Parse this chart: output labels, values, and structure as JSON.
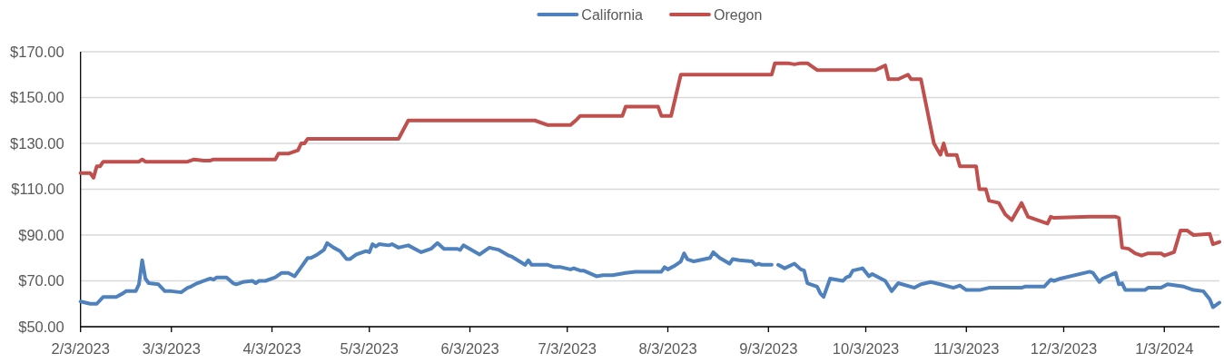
{
  "chart_data": {
    "type": "line",
    "legend": "top",
    "grid": "y",
    "line_style": "solid",
    "xlim": [
      "2023-02-03",
      "2024-01-20"
    ],
    "xticks": [
      {
        "value": "2023-02-03",
        "label": "2/3/2023"
      },
      {
        "value": "2023-03-03",
        "label": "3/3/2023"
      },
      {
        "value": "2023-04-03",
        "label": "4/3/2023"
      },
      {
        "value": "2023-05-03",
        "label": "5/3/2023"
      },
      {
        "value": "2023-06-03",
        "label": "6/3/2023"
      },
      {
        "value": "2023-07-03",
        "label": "7/3/2023"
      },
      {
        "value": "2023-08-03",
        "label": "8/3/2023"
      },
      {
        "value": "2023-09-03",
        "label": "9/3/2023"
      },
      {
        "value": "2023-10-03",
        "label": "10/3/2023"
      },
      {
        "value": "2023-11-03",
        "label": "11/3/2023"
      },
      {
        "value": "2023-12-03",
        "label": "12/3/2023"
      },
      {
        "value": "2024-01-03",
        "label": "1/3/2024"
      }
    ],
    "ylim": [
      50,
      170
    ],
    "yticks": [
      {
        "value": 50,
        "label": "$50.00"
      },
      {
        "value": 70,
        "label": "$70.00"
      },
      {
        "value": 90,
        "label": "$90.00"
      },
      {
        "value": 110,
        "label": "$110.00"
      },
      {
        "value": 130,
        "label": "$130.00"
      },
      {
        "value": 150,
        "label": "$150.00"
      },
      {
        "value": 170,
        "label": "$170.00"
      }
    ],
    "series": [
      {
        "name": "California",
        "color": "#4f81bd",
        "x": [
          "2023-02-03",
          "2023-02-06",
          "2023-02-08",
          "2023-02-10",
          "2023-02-14",
          "2023-02-16",
          "2023-02-17",
          "2023-02-20",
          "2023-02-21",
          "2023-02-22",
          "2023-02-23",
          "2023-02-24",
          "2023-02-27",
          "2023-03-01",
          "2023-03-03",
          "2023-03-06",
          "2023-03-08",
          "2023-03-09",
          "2023-03-11",
          "2023-03-14",
          "2023-03-15",
          "2023-03-16",
          "2023-03-17",
          "2023-03-20",
          "2023-03-22",
          "2023-03-23",
          "2023-03-25",
          "2023-03-28",
          "2023-03-29",
          "2023-03-30",
          "2023-04-01",
          "2023-04-04",
          "2023-04-05",
          "2023-04-06",
          "2023-04-08",
          "2023-04-10",
          "2023-04-12",
          "2023-04-14",
          "2023-04-15",
          "2023-04-17",
          "2023-04-19",
          "2023-04-20",
          "2023-04-22",
          "2023-04-24",
          "2023-04-26",
          "2023-04-27",
          "2023-04-29",
          "2023-05-02",
          "2023-05-03",
          "2023-05-04",
          "2023-05-05",
          "2023-05-06",
          "2023-05-09",
          "2023-05-10",
          "2023-05-12",
          "2023-05-15",
          "2023-05-19",
          "2023-05-22",
          "2023-05-24",
          "2023-05-26",
          "2023-05-30",
          "2023-05-31",
          "2023-06-01",
          "2023-06-06",
          "2023-06-07",
          "2023-06-09",
          "2023-06-12",
          "2023-06-15",
          "2023-06-16",
          "2023-06-20",
          "2023-06-21",
          "2023-06-22",
          "2023-06-27",
          "2023-06-29",
          "2023-07-01",
          "2023-07-04",
          "2023-07-05",
          "2023-07-07",
          "2023-07-08",
          "2023-07-12",
          "2023-07-14",
          "2023-07-17",
          "2023-07-19",
          "2023-07-21",
          "2023-07-24",
          "2023-08-01",
          "2023-08-02",
          "2023-08-03",
          "2023-08-05",
          "2023-08-07",
          "2023-08-08",
          "2023-08-09",
          "2023-08-11",
          "2023-08-16",
          "2023-08-17",
          "2023-08-19",
          "2023-08-22",
          "2023-08-23",
          "2023-08-25",
          "2023-08-29",
          "2023-08-30",
          "2023-08-31",
          "2023-09-01",
          "2023-09-04",
          "2023-09-05",
          "2023-09-06",
          "2023-09-08",
          "2023-09-11",
          "2023-09-13",
          "2023-09-14",
          "2023-09-15",
          "2023-09-18",
          "2023-09-19",
          "2023-09-20",
          "2023-09-22",
          "2023-09-26",
          "2023-09-27",
          "2023-09-28",
          "2023-09-29",
          "2023-10-02",
          "2023-10-04",
          "2023-10-05",
          "2023-10-09",
          "2023-10-11",
          "2023-10-13",
          "2023-10-18",
          "2023-10-20",
          "2023-10-23",
          "2023-10-26",
          "2023-10-30",
          "2023-11-01",
          "2023-11-03",
          "2023-11-07",
          "2023-11-10",
          "2023-11-15",
          "2023-11-17",
          "2023-11-20",
          "2023-11-21",
          "2023-11-27",
          "2023-11-29",
          "2023-11-30",
          "2023-12-02",
          "2023-12-11",
          "2023-12-12",
          "2023-12-14",
          "2023-12-15",
          "2023-12-19",
          "2023-12-20",
          "2023-12-21",
          "2023-12-22",
          "2023-12-28",
          "2023-12-29",
          "2024-01-02",
          "2024-01-04",
          "2024-01-09",
          "2024-01-12",
          "2024-01-15",
          "2024-01-17",
          "2024-01-18",
          "2024-01-20"
        ],
        "values": [
          61,
          60,
          60,
          63,
          63,
          64.5,
          65.5,
          65.5,
          68.5,
          79,
          71,
          69,
          68.5,
          65.5,
          65.5,
          65,
          67,
          67.5,
          69,
          70.5,
          71,
          70.5,
          71.5,
          71.5,
          69,
          68.5,
          69.5,
          70,
          69,
          70,
          70,
          71.5,
          72.5,
          73.5,
          73.5,
          72,
          76,
          80,
          80,
          81.5,
          83.5,
          86.5,
          84.5,
          83,
          79.5,
          79.5,
          81.5,
          83,
          82.5,
          86,
          85,
          86,
          85.5,
          86,
          84.5,
          85.5,
          82.5,
          84,
          86.5,
          84,
          84,
          83.5,
          85.5,
          81.5,
          82.5,
          84.5,
          83.5,
          81,
          80.5,
          77,
          79,
          77,
          77,
          76,
          76,
          75,
          75.5,
          74.5,
          74.5,
          72,
          72.5,
          72.5,
          73,
          73.5,
          74,
          74,
          76,
          75,
          76.5,
          78.5,
          82,
          79.5,
          78.5,
          80,
          82.5,
          80,
          77.5,
          79.5,
          79,
          78.5,
          77,
          77.5,
          77,
          77,
          null,
          77,
          75.5,
          77.5,
          75,
          74.5,
          69,
          67.5,
          64.5,
          63,
          71,
          70,
          71.5,
          72,
          74.5,
          75.5,
          72,
          73,
          70,
          65.5,
          69,
          67,
          68.5,
          69.5,
          68.5,
          67,
          68,
          66,
          66,
          67,
          67,
          67,
          67,
          67.5,
          67.5,
          70.5,
          70,
          71,
          74,
          73.5,
          69.5,
          71,
          73.5,
          68.5,
          69,
          66,
          66,
          67,
          67,
          68.5,
          67.5,
          66,
          65.5,
          62,
          58.5,
          60.5
        ]
      },
      {
        "name": "Oregon",
        "color": "#c0504d",
        "x": [
          "2023-02-03",
          "2023-02-06",
          "2023-02-07",
          "2023-02-08",
          "2023-02-09",
          "2023-02-10",
          "2023-02-21",
          "2023-02-22",
          "2023-02-23",
          "2023-03-08",
          "2023-03-10",
          "2023-03-13",
          "2023-03-15",
          "2023-03-16",
          "2023-04-04",
          "2023-04-05",
          "2023-04-08",
          "2023-04-11",
          "2023-04-12",
          "2023-04-13",
          "2023-04-14",
          "2023-05-12",
          "2023-05-15",
          "2023-06-23",
          "2023-06-27",
          "2023-07-04",
          "2023-07-06",
          "2023-07-07",
          "2023-07-20",
          "2023-07-21",
          "2023-07-31",
          "2023-08-01",
          "2023-08-04",
          "2023-08-07",
          "2023-09-04",
          "2023-09-05",
          "2023-09-09",
          "2023-09-11",
          "2023-09-13",
          "2023-09-15",
          "2023-09-18",
          "2023-10-06",
          "2023-10-09",
          "2023-10-10",
          "2023-10-13",
          "2023-10-16",
          "2023-10-17",
          "2023-10-20",
          "2023-10-24",
          "2023-10-26",
          "2023-10-27",
          "2023-10-28",
          "2023-10-31",
          "2023-11-01",
          "2023-11-06",
          "2023-11-07",
          "2023-11-09",
          "2023-11-10",
          "2023-11-13",
          "2023-11-15",
          "2023-11-17",
          "2023-11-20",
          "2023-11-22",
          "2023-11-24",
          "2023-11-28",
          "2023-11-29",
          "2023-11-30",
          "2023-12-11",
          "2023-12-19",
          "2023-12-20",
          "2023-12-21",
          "2023-12-23",
          "2023-12-25",
          "2023-12-27",
          "2023-12-29",
          "2024-01-02",
          "2024-01-03",
          "2024-01-05",
          "2024-01-06",
          "2024-01-08",
          "2024-01-10",
          "2024-01-12",
          "2024-01-17",
          "2024-01-18",
          "2024-01-20"
        ],
        "values": [
          117,
          117,
          115,
          120,
          120,
          122,
          122,
          123,
          122,
          122,
          123,
          122.5,
          122.5,
          123,
          123,
          125.5,
          125.5,
          127,
          130,
          130,
          132,
          132,
          140,
          140,
          138,
          138,
          140.5,
          142,
          142,
          146,
          146,
          142,
          142,
          160,
          160,
          165,
          165,
          164.5,
          165,
          165,
          162,
          162,
          164,
          158,
          158,
          160,
          158,
          158,
          130,
          125,
          130,
          125,
          125,
          120,
          120,
          110,
          110,
          105,
          104,
          99,
          96.5,
          104,
          98,
          97,
          95,
          98,
          97.5,
          98,
          98,
          97.5,
          84.5,
          84,
          82,
          81,
          82,
          82,
          81,
          82,
          82.5,
          92,
          92,
          90,
          90.5,
          86,
          87
        ]
      }
    ]
  }
}
